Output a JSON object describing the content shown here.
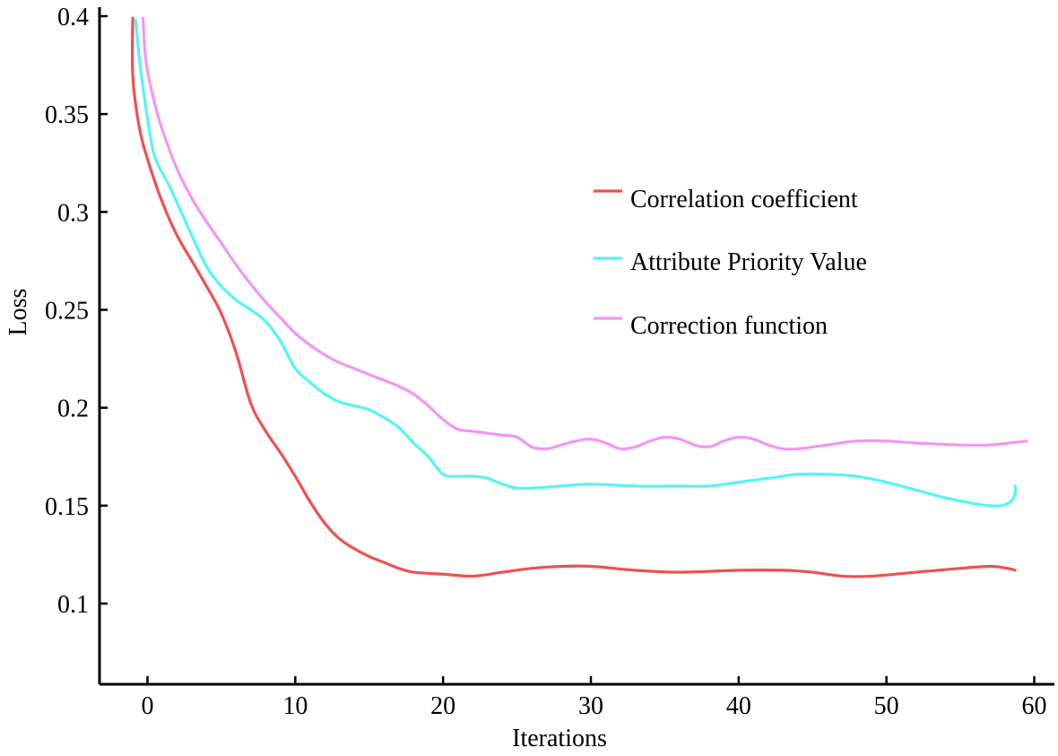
{
  "chart_data": {
    "type": "line",
    "title": "",
    "xlabel": "Iterations",
    "ylabel": "Loss",
    "xlim": [
      -3,
      61
    ],
    "ylim": [
      0.06,
      0.405
    ],
    "xticks": [
      0,
      10,
      20,
      30,
      40,
      50,
      60
    ],
    "xtick_labels": [
      "0",
      "10",
      "20",
      "30",
      "40",
      "50",
      "60"
    ],
    "yticks": [
      0.1,
      0.15,
      0.2,
      0.25,
      0.3,
      0.35,
      0.4
    ],
    "ytick_labels": [
      "0.1",
      "0.15",
      "0.2",
      "0.25",
      "0.3",
      "0.35",
      "0.4"
    ],
    "legend_position": "center-right",
    "series": [
      {
        "name": "Correlation coefficient",
        "color": "#f05050",
        "points": [
          [
            -1.0,
            0.399
          ],
          [
            -1.0,
            0.37
          ],
          [
            -0.6,
            0.345
          ],
          [
            0,
            0.327
          ],
          [
            1,
            0.305
          ],
          [
            2,
            0.288
          ],
          [
            3,
            0.275
          ],
          [
            4,
            0.262
          ],
          [
            5,
            0.248
          ],
          [
            6,
            0.228
          ],
          [
            7,
            0.202
          ],
          [
            8,
            0.188
          ],
          [
            9,
            0.177
          ],
          [
            10,
            0.165
          ],
          [
            11,
            0.152
          ],
          [
            12,
            0.141
          ],
          [
            13,
            0.133
          ],
          [
            14,
            0.128
          ],
          [
            15,
            0.124
          ],
          [
            16,
            0.121
          ],
          [
            17,
            0.118
          ],
          [
            18,
            0.116
          ],
          [
            20,
            0.115
          ],
          [
            22,
            0.114
          ],
          [
            24,
            0.116
          ],
          [
            26,
            0.118
          ],
          [
            28,
            0.119
          ],
          [
            30,
            0.119
          ],
          [
            33,
            0.117
          ],
          [
            36,
            0.116
          ],
          [
            40,
            0.117
          ],
          [
            43,
            0.117
          ],
          [
            45,
            0.116
          ],
          [
            47,
            0.114
          ],
          [
            49,
            0.114
          ],
          [
            52,
            0.116
          ],
          [
            55,
            0.118
          ],
          [
            57,
            0.119
          ],
          [
            58.2,
            0.118
          ],
          [
            58.7,
            0.117
          ]
        ]
      },
      {
        "name": "Attribute Priority Value",
        "color": "#55f5f5",
        "points": [
          [
            -0.8,
            0.398
          ],
          [
            -0.5,
            0.375
          ],
          [
            0,
            0.348
          ],
          [
            0.5,
            0.328
          ],
          [
            1.5,
            0.313
          ],
          [
            3,
            0.288
          ],
          [
            4,
            0.272
          ],
          [
            5,
            0.262
          ],
          [
            6,
            0.255
          ],
          [
            7,
            0.25
          ],
          [
            8,
            0.244
          ],
          [
            9,
            0.234
          ],
          [
            10,
            0.22
          ],
          [
            11,
            0.213
          ],
          [
            12,
            0.207
          ],
          [
            13,
            0.203
          ],
          [
            14,
            0.201
          ],
          [
            15,
            0.199
          ],
          [
            16,
            0.195
          ],
          [
            17,
            0.19
          ],
          [
            18,
            0.182
          ],
          [
            19,
            0.175
          ],
          [
            20,
            0.166
          ],
          [
            21,
            0.165
          ],
          [
            22,
            0.165
          ],
          [
            23,
            0.164
          ],
          [
            24,
            0.161
          ],
          [
            25,
            0.159
          ],
          [
            26,
            0.159
          ],
          [
            28,
            0.16
          ],
          [
            30,
            0.161
          ],
          [
            33,
            0.16
          ],
          [
            36,
            0.16
          ],
          [
            38,
            0.16
          ],
          [
            40,
            0.162
          ],
          [
            42,
            0.164
          ],
          [
            44,
            0.166
          ],
          [
            46,
            0.166
          ],
          [
            48,
            0.165
          ],
          [
            50,
            0.162
          ],
          [
            52,
            0.158
          ],
          [
            54,
            0.154
          ],
          [
            56,
            0.151
          ],
          [
            57,
            0.15
          ],
          [
            57.8,
            0.15
          ],
          [
            58.4,
            0.152
          ],
          [
            58.7,
            0.156
          ],
          [
            58.7,
            0.16
          ]
        ]
      },
      {
        "name": "Correction function",
        "color": "#f595f5",
        "points": [
          [
            -0.3,
            0.399
          ],
          [
            -0.2,
            0.385
          ],
          [
            0,
            0.372
          ],
          [
            0.5,
            0.355
          ],
          [
            1,
            0.342
          ],
          [
            2,
            0.322
          ],
          [
            3,
            0.307
          ],
          [
            4,
            0.295
          ],
          [
            5,
            0.284
          ],
          [
            6,
            0.273
          ],
          [
            7,
            0.263
          ],
          [
            8,
            0.254
          ],
          [
            9,
            0.246
          ],
          [
            10,
            0.238
          ],
          [
            11,
            0.232
          ],
          [
            12,
            0.227
          ],
          [
            13,
            0.223
          ],
          [
            14,
            0.22
          ],
          [
            15,
            0.217
          ],
          [
            16,
            0.214
          ],
          [
            17,
            0.211
          ],
          [
            18,
            0.207
          ],
          [
            19,
            0.201
          ],
          [
            20,
            0.194
          ],
          [
            21,
            0.189
          ],
          [
            22,
            0.188
          ],
          [
            23,
            0.187
          ],
          [
            24,
            0.186
          ],
          [
            25,
            0.185
          ],
          [
            26,
            0.18
          ],
          [
            27,
            0.179
          ],
          [
            28,
            0.181
          ],
          [
            29,
            0.183
          ],
          [
            30,
            0.184
          ],
          [
            31,
            0.182
          ],
          [
            32,
            0.179
          ],
          [
            33,
            0.18
          ],
          [
            34,
            0.183
          ],
          [
            35,
            0.185
          ],
          [
            36,
            0.184
          ],
          [
            37,
            0.181
          ],
          [
            38,
            0.18
          ],
          [
            39,
            0.183
          ],
          [
            40,
            0.185
          ],
          [
            41,
            0.184
          ],
          [
            42,
            0.181
          ],
          [
            43,
            0.179
          ],
          [
            44,
            0.179
          ],
          [
            46,
            0.181
          ],
          [
            48,
            0.183
          ],
          [
            50,
            0.183
          ],
          [
            52,
            0.182
          ],
          [
            55,
            0.181
          ],
          [
            57,
            0.181
          ],
          [
            59.5,
            0.183
          ]
        ]
      }
    ]
  }
}
